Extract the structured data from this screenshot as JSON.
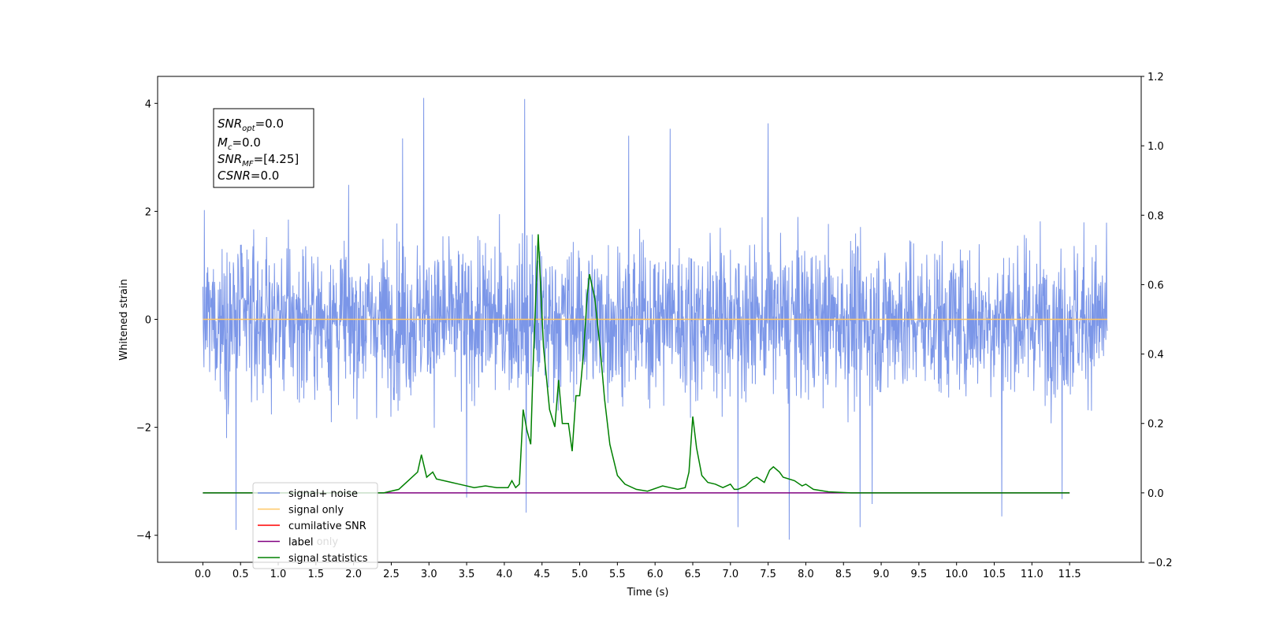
{
  "chart_data": {
    "type": "line",
    "xlabel": "Time (s)",
    "ylabel": "Whitened strain",
    "xlim": [
      -0.6,
      12.45
    ],
    "ylim": [
      -4.5,
      4.5
    ],
    "y2lim": [
      -0.2,
      1.2
    ],
    "x_ticks": [
      "0.0",
      "0.5",
      "1.0",
      "1.5",
      "2.0",
      "2.5",
      "3.0",
      "3.5",
      "4.0",
      "4.5",
      "5.0",
      "5.5",
      "6.0",
      "6.5",
      "7.0",
      "7.5",
      "8.0",
      "8.5",
      "9.0",
      "9.5",
      "10.0",
      "10.5",
      "11.0",
      "11.5"
    ],
    "y_ticks": [
      "4",
      "2",
      "0",
      "−2",
      "−4"
    ],
    "y2_ticks": [
      "1.2",
      "1.0",
      "0.8",
      "0.6",
      "0.4",
      "0.2",
      "0.0",
      "−0.2"
    ],
    "info_box": {
      "snr_opt": {
        "base": "SNR",
        "sub": "opt",
        "value": "=0.0"
      },
      "mc": {
        "base": "M",
        "sub": "c",
        "value": "=0.0"
      },
      "snr_mf": {
        "base": "SNR",
        "sub": "MF",
        "value": "=[4.25]"
      },
      "csnr": {
        "base": "CSNR",
        "value": "=0.0"
      }
    },
    "legend": {
      "position": "lower-left",
      "entries": [
        {
          "label": "signal+ noise",
          "color": "#7b96e8"
        },
        {
          "label": "signal only",
          "color": "#ffc766"
        },
        {
          "label": "cumilative SNR",
          "color": "#ff0000"
        },
        {
          "label": "label",
          "color": "#800080"
        },
        {
          "label": "signal statistics",
          "color": "#008000"
        }
      ],
      "obscured_text": [
        "label only"
      ]
    },
    "series": [
      {
        "name": "signal+ noise",
        "axis": "left",
        "color": "#7b96e8",
        "x_range": [
          0.0,
          12.0
        ],
        "note_envelope": "dense noise, approx. within [-2.4, 2.4] with peaks",
        "peaks": [
          {
            "x": 2.93,
            "y": 4.1
          },
          {
            "x": 4.27,
            "y": 4.08
          },
          {
            "x": 7.5,
            "y": 3.63
          },
          {
            "x": 6.2,
            "y": 3.53
          },
          {
            "x": 2.65,
            "y": 3.35
          },
          {
            "x": 5.65,
            "y": 3.4
          },
          {
            "x": 0.44,
            "y": -3.9
          },
          {
            "x": 7.78,
            "y": -4.08
          },
          {
            "x": 8.72,
            "y": -3.85
          },
          {
            "x": 7.1,
            "y": -3.85
          },
          {
            "x": 4.29,
            "y": -3.58
          },
          {
            "x": 10.6,
            "y": -3.65
          },
          {
            "x": 3.5,
            "y": -3.3
          },
          {
            "x": 8.88,
            "y": -3.42
          },
          {
            "x": 11.4,
            "y": -3.33
          }
        ]
      },
      {
        "name": "signal only",
        "axis": "left",
        "color": "#ffc766",
        "x": [
          0.0,
          12.0
        ],
        "y": [
          0.0,
          0.0
        ]
      },
      {
        "name": "label",
        "axis": "right",
        "color": "#800080",
        "x": [
          0.0,
          11.5
        ],
        "y": [
          0.0,
          0.0
        ]
      },
      {
        "name": "signal statistics",
        "axis": "right",
        "color": "#008000",
        "x": [
          0.0,
          2.0,
          2.4,
          2.6,
          2.75,
          2.85,
          2.9,
          2.97,
          3.05,
          3.1,
          3.3,
          3.4,
          3.6,
          3.75,
          3.9,
          4.05,
          4.1,
          4.15,
          4.2,
          4.25,
          4.3,
          4.35,
          4.38,
          4.45,
          4.52,
          4.6,
          4.67,
          4.72,
          4.77,
          4.85,
          4.9,
          4.95,
          5.0,
          5.05,
          5.1,
          5.13,
          5.2,
          5.27,
          5.33,
          5.4,
          5.5,
          5.6,
          5.75,
          5.9,
          6.1,
          6.2,
          6.3,
          6.4,
          6.45,
          6.5,
          6.55,
          6.62,
          6.7,
          6.8,
          6.9,
          7.0,
          7.05,
          7.1,
          7.2,
          7.3,
          7.35,
          7.45,
          7.52,
          7.57,
          7.65,
          7.7,
          7.85,
          7.95,
          8.0,
          8.1,
          8.3,
          8.6,
          11.5
        ],
        "y": [
          0.0,
          0.0,
          0.0,
          0.01,
          0.04,
          0.06,
          0.11,
          0.045,
          0.06,
          0.04,
          0.03,
          0.025,
          0.015,
          0.02,
          0.015,
          0.015,
          0.035,
          0.015,
          0.025,
          0.24,
          0.18,
          0.14,
          0.35,
          0.745,
          0.42,
          0.24,
          0.19,
          0.325,
          0.2,
          0.2,
          0.12,
          0.28,
          0.28,
          0.4,
          0.57,
          0.63,
          0.56,
          0.42,
          0.27,
          0.14,
          0.05,
          0.025,
          0.01,
          0.005,
          0.02,
          0.015,
          0.01,
          0.015,
          0.06,
          0.22,
          0.13,
          0.05,
          0.03,
          0.025,
          0.015,
          0.025,
          0.01,
          0.01,
          0.02,
          0.04,
          0.045,
          0.03,
          0.065,
          0.075,
          0.06,
          0.045,
          0.035,
          0.02,
          0.025,
          0.01,
          0.003,
          0.0,
          0.0
        ]
      }
    ]
  }
}
